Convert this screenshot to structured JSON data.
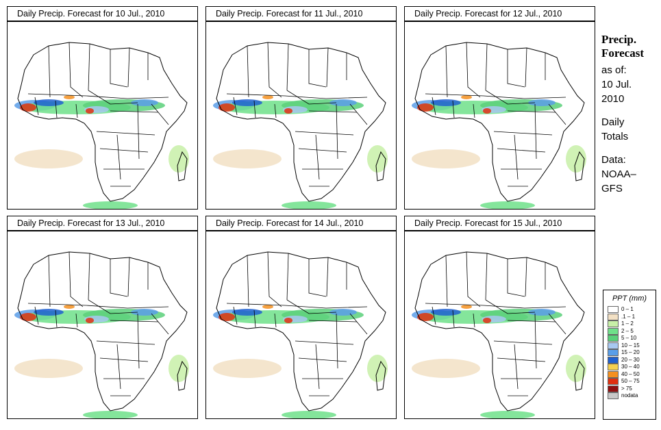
{
  "panels": [
    {
      "title": "Daily Precip. Forecast for  10 Jul., 2010"
    },
    {
      "title": "Daily Precip. Forecast for  11 Jul., 2010"
    },
    {
      "title": "Daily Precip. Forecast for  12 Jul., 2010"
    },
    {
      "title": "Daily Precip. Forecast for  13 Jul., 2010"
    },
    {
      "title": "Daily Precip. Forecast for  14 Jul., 2010"
    },
    {
      "title": "Daily Precip. Forecast for  15 Jul., 2010"
    }
  ],
  "sidebar": {
    "heading1": "Precip.",
    "heading2": "Forecast",
    "asof": "as of:",
    "date1": "10 Jul.",
    "date2": "2010",
    "daily": "Daily",
    "totals": "Totals",
    "data_label": "Data:",
    "source1": "NOAA–",
    "source2": "GFS"
  },
  "legend": {
    "title": "PPT (mm)",
    "items": [
      {
        "label": "0 – 1",
        "color": "#ffffff"
      },
      {
        "label": ".1 – 1",
        "color": "#f2e0c4"
      },
      {
        "label": "1 – 2",
        "color": "#c8f0a8"
      },
      {
        "label": "2 – 5",
        "color": "#6fe08a"
      },
      {
        "label": "5 – 10",
        "color": "#5ad07a"
      },
      {
        "label": "10 – 15",
        "color": "#a8c8f0"
      },
      {
        "label": "15 – 20",
        "color": "#5a9ee8"
      },
      {
        "label": "20 – 30",
        "color": "#2060d0"
      },
      {
        "label": "30 – 40",
        "color": "#f5d050"
      },
      {
        "label": "40 – 50",
        "color": "#f59020"
      },
      {
        "label": "50 – 75",
        "color": "#e03010"
      },
      {
        "label": "> 75",
        "color": "#901010"
      },
      {
        "label": "nodata",
        "color": "#c8c8c8"
      }
    ]
  }
}
